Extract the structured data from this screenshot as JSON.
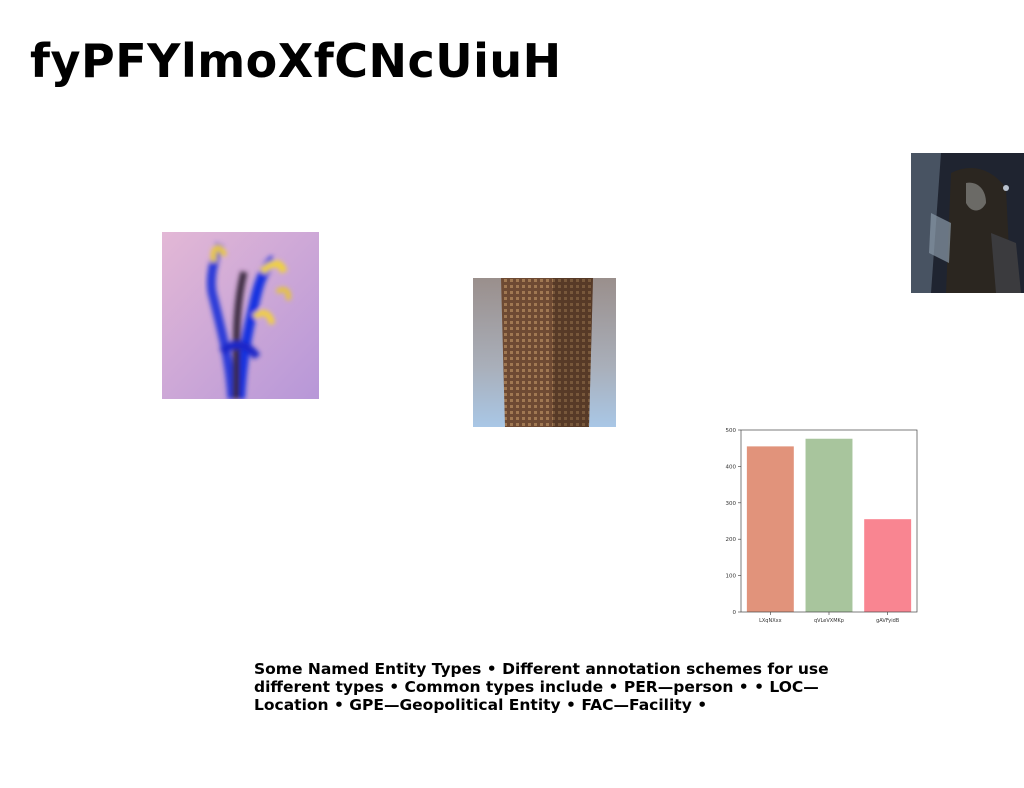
{
  "slide": {
    "title": "fyPFYlmoXfCNcUiuH",
    "body_text": "Some Named Entity Types • Different annotation schemes for use different types • Common types include • PER—person • • LOC—Location • GPE—Geopolitical Entity • FAC—Facility •"
  },
  "images": [
    {
      "subject": "blurred blue and yellow flower on purple background"
    },
    {
      "subject": "tall brown high-rise building"
    },
    {
      "subject": "dark fantasy costumed character"
    }
  ],
  "chart_data": {
    "type": "bar",
    "categories": [
      "LXqNXxx",
      "qVLeVXMKp",
      "gAVFyidB"
    ],
    "values": [
      455,
      476,
      255
    ],
    "ylim": [
      0,
      500
    ],
    "yticks": [
      0,
      100,
      200,
      300,
      400,
      500
    ],
    "colors": [
      "#e1937b",
      "#a8c59d",
      "#f98591"
    ],
    "title": "",
    "xlabel": "",
    "ylabel": "",
    "grid": false
  }
}
